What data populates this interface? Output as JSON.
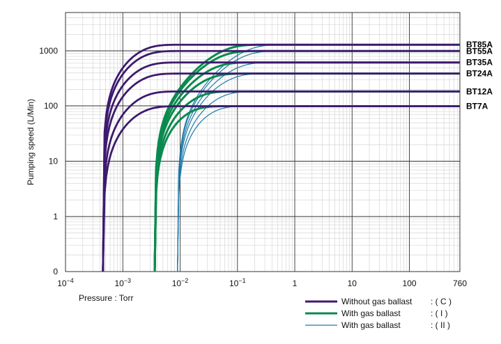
{
  "chart_data": {
    "type": "line",
    "title": "",
    "xlabel": "Pressure : Torr",
    "ylabel": "Pumping speed (L/Min)",
    "x_scale": "log",
    "y_scale": "log-like",
    "xlim": [
      0.0001,
      760
    ],
    "y_ticks": [
      "0",
      "1",
      "10",
      "100",
      "1000"
    ],
    "x_ticks": [
      {
        "value": 0.0001,
        "base": "10",
        "exp": "−4"
      },
      {
        "value": 0.001,
        "base": "10",
        "exp": "−3"
      },
      {
        "value": 0.01,
        "base": "10",
        "exp": "−2"
      },
      {
        "value": 0.1,
        "base": "10",
        "exp": "−1"
      },
      {
        "value": 1,
        "label": "1"
      },
      {
        "value": 10,
        "label": "10"
      },
      {
        "value": 100,
        "label": "100"
      },
      {
        "value": 760,
        "label": "760"
      }
    ],
    "grid": true,
    "pumps": [
      {
        "name": "BT85A",
        "max_speed": 1300
      },
      {
        "name": "BT55A",
        "max_speed": 1000
      },
      {
        "name": "BT35A",
        "max_speed": 620
      },
      {
        "name": "BT24A",
        "max_speed": 390
      },
      {
        "name": "BT12A",
        "max_speed": 185
      },
      {
        "name": "BT7A",
        "max_speed": 100
      }
    ],
    "modes": [
      {
        "key": "C",
        "label": "Without gas ballast",
        "mark": "( C )",
        "color": "#3d1a6e"
      },
      {
        "key": "I",
        "label": "With gas ballast",
        "mark": "( I )",
        "color": "#0a8a4e"
      },
      {
        "key": "II",
        "label": "With gas ballast",
        "mark": "( II )",
        "color": "#1c79a6"
      }
    ]
  }
}
